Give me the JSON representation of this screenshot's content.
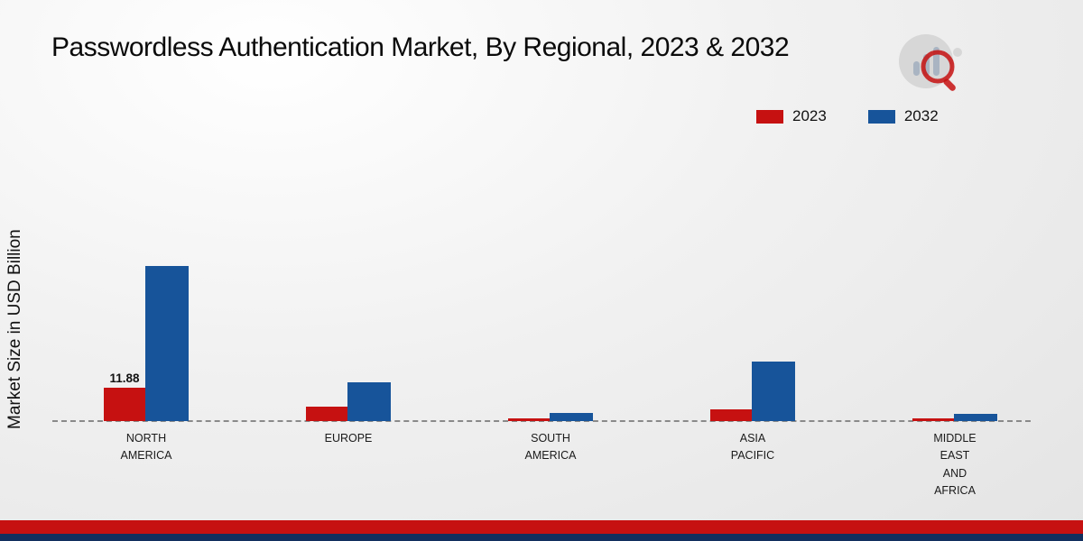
{
  "title": "Passwordless Authentication Market, By Regional, 2023 & 2032",
  "ylabel": "Market Size in USD Billion",
  "legend": {
    "items": [
      {
        "label": "2023",
        "color": "#c61111"
      },
      {
        "label": "2032",
        "color": "#17549a"
      }
    ]
  },
  "colors": {
    "bar_2023": "#c61111",
    "bar_2032": "#17549a",
    "footer_red": "#c61111",
    "footer_navy": "#122f5e",
    "baseline": "#8a8a8a"
  },
  "chart_data": {
    "type": "bar",
    "title": "Passwordless Authentication Market, By Regional, 2023 & 2032",
    "xlabel": "",
    "ylabel": "Market Size in USD Billion",
    "categories": [
      "NORTH AMERICA",
      "EUROPE",
      "SOUTH AMERICA",
      "ASIA PACIFIC",
      "MIDDLE EAST AND AFRICA"
    ],
    "category_lines": [
      [
        "NORTH",
        "AMERICA"
      ],
      [
        "EUROPE"
      ],
      [
        "SOUTH",
        "AMERICA"
      ],
      [
        "ASIA",
        "PACIFIC"
      ],
      [
        "MIDDLE",
        "EAST",
        "AND",
        "AFRICA"
      ]
    ],
    "series": [
      {
        "name": "2023",
        "color": "#c61111",
        "values": [
          11.88,
          5.2,
          1.0,
          4.0,
          0.8
        ]
      },
      {
        "name": "2032",
        "color": "#17549a",
        "values": [
          55.0,
          13.8,
          2.9,
          21.0,
          2.6
        ]
      }
    ],
    "annotations": [
      {
        "series_index": 0,
        "category_index": 0,
        "text": "11.88"
      }
    ],
    "ylim": [
      0,
      60
    ],
    "grid": false,
    "legend_position": "top-right",
    "baseline_value": 0
  }
}
